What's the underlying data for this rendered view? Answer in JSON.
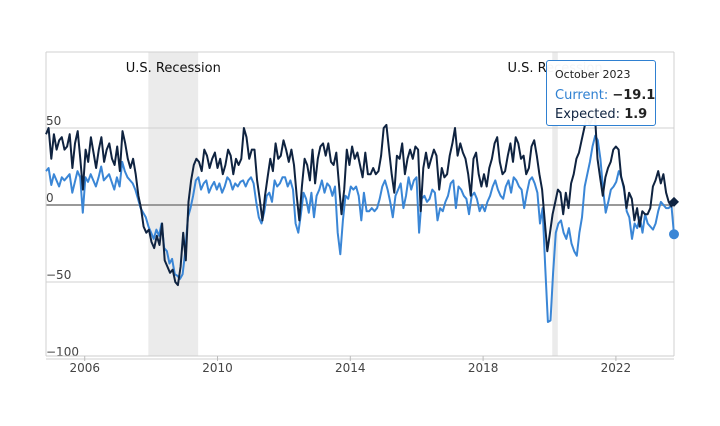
{
  "chart_data": {
    "type": "line",
    "x_start": "2004-11",
    "x_end": "2023-10",
    "x_ticks": [
      "2006",
      "2010",
      "2014",
      "2018",
      "2022"
    ],
    "ylim": [
      -100,
      80
    ],
    "y_ticks": [
      50,
      0,
      -50,
      -100
    ],
    "grid": true,
    "recessions": [
      {
        "label": "U.S. Recession",
        "start": "2007-12",
        "end": "2009-06"
      },
      {
        "label": "U.S. Recession",
        "start": "2020-02",
        "end": "2020-04"
      }
    ],
    "colors": {
      "current": "#3a86d6",
      "expected": "#0f2340",
      "recession": "#ebebeb",
      "grid": "#d0d0d0",
      "zero": "#999999"
    },
    "series": [
      {
        "key": "current",
        "values": [
          22,
          24,
          13,
          20,
          16,
          12,
          18,
          16,
          18,
          20,
          8,
          15,
          22,
          18,
          -5,
          18,
          15,
          20,
          16,
          12,
          18,
          25,
          16,
          18,
          20,
          15,
          10,
          18,
          12,
          28,
          22,
          18,
          16,
          14,
          10,
          4,
          -2,
          -5,
          -8,
          -14,
          -18,
          -22,
          -16,
          -20,
          -12,
          -28,
          -30,
          -38,
          -35,
          -45,
          -46,
          -48,
          -45,
          -30,
          -8,
          -2,
          6,
          16,
          18,
          10,
          14,
          16,
          8,
          12,
          15,
          10,
          14,
          8,
          12,
          18,
          16,
          10,
          14,
          12,
          15,
          16,
          12,
          16,
          18,
          14,
          2,
          -8,
          -12,
          -5,
          6,
          8,
          2,
          16,
          12,
          14,
          18,
          18,
          12,
          16,
          10,
          -12,
          -18,
          -6,
          8,
          4,
          -5,
          8,
          -8,
          6,
          10,
          16,
          8,
          14,
          12,
          6,
          12,
          -18,
          -32,
          -10,
          6,
          4,
          12,
          10,
          12,
          6,
          -10,
          8,
          -4,
          -4,
          -2,
          -4,
          -2,
          4,
          12,
          16,
          10,
          2,
          -8,
          6,
          10,
          14,
          -2,
          6,
          18,
          10,
          16,
          18,
          -18,
          4,
          6,
          2,
          4,
          10,
          8,
          -10,
          -2,
          -4,
          2,
          6,
          14,
          16,
          -2,
          12,
          10,
          6,
          4,
          -6,
          6,
          8,
          4,
          -4,
          0,
          -4,
          2,
          6,
          12,
          16,
          10,
          6,
          4,
          12,
          16,
          8,
          18,
          16,
          12,
          10,
          -2,
          8,
          16,
          18,
          14,
          8,
          -12,
          -2,
          -40,
          -76,
          -75,
          -44,
          -18,
          -12,
          -10,
          -18,
          -22,
          -15,
          -25,
          -30,
          -33,
          -18,
          -8,
          12,
          20,
          28,
          38,
          45,
          42,
          30,
          10,
          -5,
          2,
          10,
          12,
          15,
          22,
          18,
          10,
          -4,
          -8,
          -22,
          -12,
          -15,
          -8,
          -18,
          -6,
          -12,
          -14,
          -16,
          -12,
          -4,
          2,
          0,
          -2,
          -2,
          0,
          -19
        ]
      },
      {
        "key": "expected",
        "values": [
          46,
          50,
          30,
          46,
          36,
          42,
          44,
          36,
          38,
          46,
          24,
          40,
          48,
          30,
          10,
          36,
          28,
          44,
          34,
          24,
          36,
          44,
          28,
          36,
          40,
          30,
          26,
          38,
          22,
          48,
          40,
          30,
          24,
          30,
          20,
          6,
          -2,
          -14,
          -18,
          -16,
          -24,
          -28,
          -20,
          -26,
          -12,
          -36,
          -40,
          -44,
          -42,
          -50,
          -52,
          -40,
          -18,
          -36,
          2,
          16,
          26,
          30,
          28,
          22,
          36,
          32,
          24,
          30,
          34,
          24,
          30,
          20,
          26,
          36,
          32,
          20,
          30,
          26,
          30,
          50,
          44,
          30,
          36,
          36,
          16,
          4,
          -10,
          6,
          18,
          30,
          22,
          40,
          30,
          32,
          42,
          36,
          28,
          36,
          26,
          6,
          -10,
          12,
          30,
          26,
          16,
          36,
          14,
          30,
          38,
          40,
          32,
          40,
          28,
          26,
          34,
          14,
          -6,
          10,
          36,
          26,
          38,
          30,
          34,
          26,
          18,
          34,
          20,
          20,
          24,
          20,
          22,
          32,
          50,
          52,
          36,
          20,
          8,
          32,
          30,
          40,
          20,
          30,
          36,
          30,
          38,
          36,
          -4,
          24,
          34,
          24,
          30,
          36,
          32,
          10,
          24,
          18,
          20,
          32,
          40,
          50,
          32,
          40,
          34,
          30,
          20,
          6,
          30,
          34,
          20,
          12,
          20,
          12,
          24,
          30,
          40,
          44,
          28,
          20,
          22,
          32,
          40,
          28,
          44,
          40,
          30,
          32,
          20,
          24,
          38,
          42,
          32,
          20,
          10,
          -10,
          -30,
          -18,
          -6,
          2,
          10,
          8,
          -6,
          8,
          -2,
          14,
          20,
          30,
          34,
          42,
          50,
          58,
          52,
          56,
          60,
          30,
          18,
          6,
          18,
          24,
          28,
          36,
          38,
          36,
          18,
          12,
          -2,
          8,
          4,
          -10,
          -2,
          -14,
          -4,
          -6,
          -6,
          -2,
          12,
          16,
          22,
          14,
          20,
          8,
          2,
          -1,
          2
        ]
      }
    ],
    "tooltip": {
      "date": "October 2023",
      "current_label": "Current:",
      "current_value": "−19.1",
      "expected_label": "Expected:",
      "expected_value": "1.9"
    }
  }
}
